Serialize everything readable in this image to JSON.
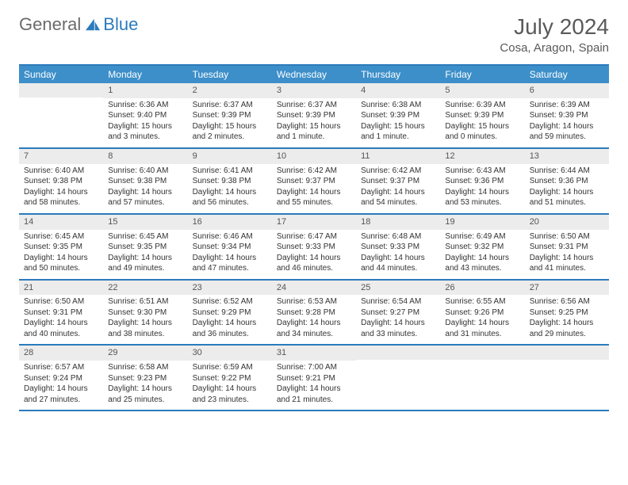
{
  "brand": {
    "part1": "General",
    "part2": "Blue"
  },
  "title": {
    "month": "July 2024",
    "location": "Cosa, Aragon, Spain"
  },
  "dow": [
    "Sunday",
    "Monday",
    "Tuesday",
    "Wednesday",
    "Thursday",
    "Friday",
    "Saturday"
  ],
  "colors": {
    "accent": "#2b7bbd",
    "header_bg": "#3d8fc9",
    "daynum_bg": "#ececec"
  },
  "weeks": [
    [
      {
        "n": "",
        "sunrise": "",
        "sunset": "",
        "daylight": ""
      },
      {
        "n": "1",
        "sunrise": "Sunrise: 6:36 AM",
        "sunset": "Sunset: 9:40 PM",
        "daylight": "Daylight: 15 hours and 3 minutes."
      },
      {
        "n": "2",
        "sunrise": "Sunrise: 6:37 AM",
        "sunset": "Sunset: 9:39 PM",
        "daylight": "Daylight: 15 hours and 2 minutes."
      },
      {
        "n": "3",
        "sunrise": "Sunrise: 6:37 AM",
        "sunset": "Sunset: 9:39 PM",
        "daylight": "Daylight: 15 hours and 1 minute."
      },
      {
        "n": "4",
        "sunrise": "Sunrise: 6:38 AM",
        "sunset": "Sunset: 9:39 PM",
        "daylight": "Daylight: 15 hours and 1 minute."
      },
      {
        "n": "5",
        "sunrise": "Sunrise: 6:39 AM",
        "sunset": "Sunset: 9:39 PM",
        "daylight": "Daylight: 15 hours and 0 minutes."
      },
      {
        "n": "6",
        "sunrise": "Sunrise: 6:39 AM",
        "sunset": "Sunset: 9:39 PM",
        "daylight": "Daylight: 14 hours and 59 minutes."
      }
    ],
    [
      {
        "n": "7",
        "sunrise": "Sunrise: 6:40 AM",
        "sunset": "Sunset: 9:38 PM",
        "daylight": "Daylight: 14 hours and 58 minutes."
      },
      {
        "n": "8",
        "sunrise": "Sunrise: 6:40 AM",
        "sunset": "Sunset: 9:38 PM",
        "daylight": "Daylight: 14 hours and 57 minutes."
      },
      {
        "n": "9",
        "sunrise": "Sunrise: 6:41 AM",
        "sunset": "Sunset: 9:38 PM",
        "daylight": "Daylight: 14 hours and 56 minutes."
      },
      {
        "n": "10",
        "sunrise": "Sunrise: 6:42 AM",
        "sunset": "Sunset: 9:37 PM",
        "daylight": "Daylight: 14 hours and 55 minutes."
      },
      {
        "n": "11",
        "sunrise": "Sunrise: 6:42 AM",
        "sunset": "Sunset: 9:37 PM",
        "daylight": "Daylight: 14 hours and 54 minutes."
      },
      {
        "n": "12",
        "sunrise": "Sunrise: 6:43 AM",
        "sunset": "Sunset: 9:36 PM",
        "daylight": "Daylight: 14 hours and 53 minutes."
      },
      {
        "n": "13",
        "sunrise": "Sunrise: 6:44 AM",
        "sunset": "Sunset: 9:36 PM",
        "daylight": "Daylight: 14 hours and 51 minutes."
      }
    ],
    [
      {
        "n": "14",
        "sunrise": "Sunrise: 6:45 AM",
        "sunset": "Sunset: 9:35 PM",
        "daylight": "Daylight: 14 hours and 50 minutes."
      },
      {
        "n": "15",
        "sunrise": "Sunrise: 6:45 AM",
        "sunset": "Sunset: 9:35 PM",
        "daylight": "Daylight: 14 hours and 49 minutes."
      },
      {
        "n": "16",
        "sunrise": "Sunrise: 6:46 AM",
        "sunset": "Sunset: 9:34 PM",
        "daylight": "Daylight: 14 hours and 47 minutes."
      },
      {
        "n": "17",
        "sunrise": "Sunrise: 6:47 AM",
        "sunset": "Sunset: 9:33 PM",
        "daylight": "Daylight: 14 hours and 46 minutes."
      },
      {
        "n": "18",
        "sunrise": "Sunrise: 6:48 AM",
        "sunset": "Sunset: 9:33 PM",
        "daylight": "Daylight: 14 hours and 44 minutes."
      },
      {
        "n": "19",
        "sunrise": "Sunrise: 6:49 AM",
        "sunset": "Sunset: 9:32 PM",
        "daylight": "Daylight: 14 hours and 43 minutes."
      },
      {
        "n": "20",
        "sunrise": "Sunrise: 6:50 AM",
        "sunset": "Sunset: 9:31 PM",
        "daylight": "Daylight: 14 hours and 41 minutes."
      }
    ],
    [
      {
        "n": "21",
        "sunrise": "Sunrise: 6:50 AM",
        "sunset": "Sunset: 9:31 PM",
        "daylight": "Daylight: 14 hours and 40 minutes."
      },
      {
        "n": "22",
        "sunrise": "Sunrise: 6:51 AM",
        "sunset": "Sunset: 9:30 PM",
        "daylight": "Daylight: 14 hours and 38 minutes."
      },
      {
        "n": "23",
        "sunrise": "Sunrise: 6:52 AM",
        "sunset": "Sunset: 9:29 PM",
        "daylight": "Daylight: 14 hours and 36 minutes."
      },
      {
        "n": "24",
        "sunrise": "Sunrise: 6:53 AM",
        "sunset": "Sunset: 9:28 PM",
        "daylight": "Daylight: 14 hours and 34 minutes."
      },
      {
        "n": "25",
        "sunrise": "Sunrise: 6:54 AM",
        "sunset": "Sunset: 9:27 PM",
        "daylight": "Daylight: 14 hours and 33 minutes."
      },
      {
        "n": "26",
        "sunrise": "Sunrise: 6:55 AM",
        "sunset": "Sunset: 9:26 PM",
        "daylight": "Daylight: 14 hours and 31 minutes."
      },
      {
        "n": "27",
        "sunrise": "Sunrise: 6:56 AM",
        "sunset": "Sunset: 9:25 PM",
        "daylight": "Daylight: 14 hours and 29 minutes."
      }
    ],
    [
      {
        "n": "28",
        "sunrise": "Sunrise: 6:57 AM",
        "sunset": "Sunset: 9:24 PM",
        "daylight": "Daylight: 14 hours and 27 minutes."
      },
      {
        "n": "29",
        "sunrise": "Sunrise: 6:58 AM",
        "sunset": "Sunset: 9:23 PM",
        "daylight": "Daylight: 14 hours and 25 minutes."
      },
      {
        "n": "30",
        "sunrise": "Sunrise: 6:59 AM",
        "sunset": "Sunset: 9:22 PM",
        "daylight": "Daylight: 14 hours and 23 minutes."
      },
      {
        "n": "31",
        "sunrise": "Sunrise: 7:00 AM",
        "sunset": "Sunset: 9:21 PM",
        "daylight": "Daylight: 14 hours and 21 minutes."
      },
      {
        "n": "",
        "sunrise": "",
        "sunset": "",
        "daylight": ""
      },
      {
        "n": "",
        "sunrise": "",
        "sunset": "",
        "daylight": ""
      },
      {
        "n": "",
        "sunrise": "",
        "sunset": "",
        "daylight": ""
      }
    ]
  ]
}
